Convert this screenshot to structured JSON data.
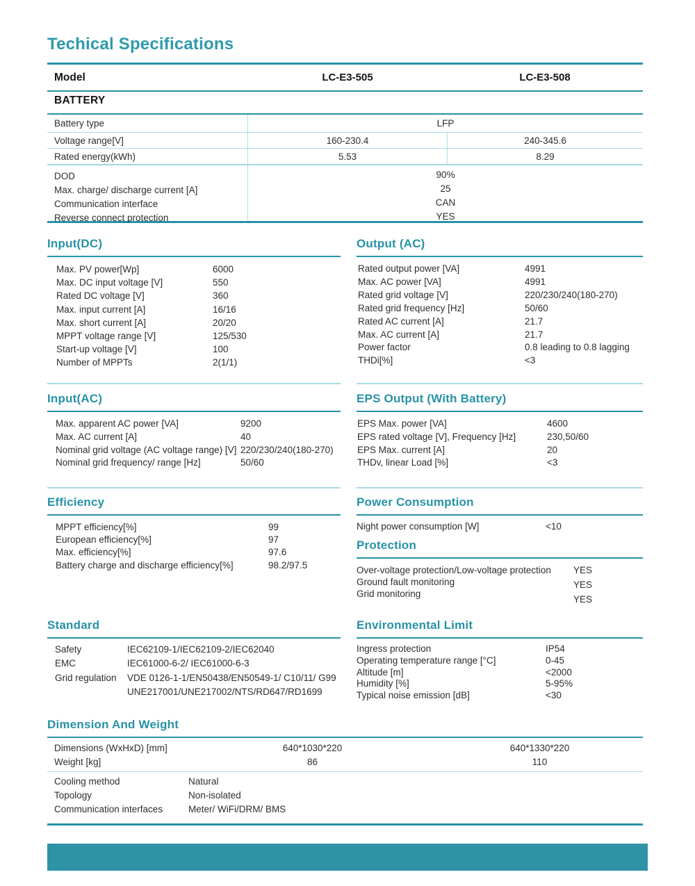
{
  "title": "Techical Specifications",
  "model": {
    "label": "Model",
    "col1": "LC-E3-505",
    "col2": "LC-E3-508"
  },
  "battery": {
    "header": "BATTERY",
    "type_label": "Battery type",
    "type_value": "LFP",
    "voltage": {
      "label": "Voltage range[V]",
      "v1": "160-230.4",
      "v2": "240-345.6"
    },
    "energy": {
      "label": "Rated energy(kWh)",
      "v1": "5.53",
      "v2": "8.29"
    },
    "common": [
      {
        "label": "DOD",
        "value": "90%"
      },
      {
        "label": "Max. charge/ discharge current [A]",
        "value": "25"
      },
      {
        "label": "Communication interface",
        "value": "CAN"
      },
      {
        "label": "Reverse connect protection",
        "value": "YES"
      }
    ]
  },
  "sections": {
    "input_dc": {
      "title": "Input(DC)",
      "rows": [
        [
          "Max. PV power[Wp]",
          "6000"
        ],
        [
          "Max. DC input voltage [V]",
          "550"
        ],
        [
          "Rated DC voltage [V]",
          "360"
        ],
        [
          "Max.  input  current [A]",
          "16/16"
        ],
        [
          "Max.  short  current [A]",
          "20/20"
        ],
        [
          "MPPT voltage range  [V]",
          "125/530"
        ],
        [
          "Start-up voltage [V]",
          "100"
        ],
        [
          "Number of MPPTs",
          "2(1/1)"
        ]
      ]
    },
    "output_ac": {
      "title": "Output (AC)",
      "rows": [
        [
          "Rated output power [VA]",
          "4991"
        ],
        [
          "Max. AC power [VA]",
          "4991"
        ],
        [
          "Rated grid voltage [V]",
          "220/230/240(180-270)"
        ],
        [
          "Rated grid frequency [Hz]",
          "50/60"
        ],
        [
          "Rated AC current [A]",
          "21.7"
        ],
        [
          "Max. AC current [A]",
          "21.7"
        ],
        [
          "Power factor",
          "0.8 leading to 0.8 lagging"
        ],
        [
          "THDi[%]",
          "<3"
        ]
      ]
    },
    "input_ac": {
      "title": "Input(AC)",
      "rows": [
        [
          "Max. apparent AC power [VA]",
          "9200"
        ],
        [
          "Max. AC current [A]",
          "40"
        ],
        [
          "Nominal grid voltage (AC voltage range) [V]",
          "220/230/240(180-270)"
        ],
        [
          "Nominal grid frequency/ range [Hz]",
          "50/60"
        ]
      ]
    },
    "eps": {
      "title": "EPS Output (With Battery)",
      "rows": [
        [
          "EPS Max. power [VA]",
          "4600"
        ],
        [
          "EPS rated voltage [V], Frequency [Hz]",
          "230,50/60"
        ],
        [
          "EPS Max. current [A]",
          "20"
        ],
        [
          "THDv, linear Load [%]",
          "<3"
        ]
      ]
    },
    "efficiency": {
      "title": "Efficiency",
      "rows": [
        [
          "MPPT efficiency[%]",
          "99"
        ],
        [
          "European efficiency[%]",
          "97"
        ],
        [
          "Max. efficiency[%]",
          "97.6"
        ],
        [
          "Battery charge and discharge efficiency[%]",
          "98.2/97.5"
        ]
      ]
    },
    "power": {
      "title": "Power Consumption",
      "rows": [
        [
          "Night power consumption [W]",
          "<10"
        ]
      ]
    },
    "protection": {
      "title": "Protection",
      "rows": [
        [
          "Over-voltage protection/Low-voltage protection",
          "YES"
        ],
        [
          "Ground fault monitoring",
          "YES"
        ],
        [
          "Grid  monitoring",
          "YES"
        ]
      ]
    },
    "standard": {
      "title": "Standard",
      "rows": [
        [
          "Safety",
          "IEC62109-1/IEC62109-2/IEC62040"
        ],
        [
          "EMC",
          "IEC61000-6-2/ IEC61000-6-3"
        ],
        [
          "Grid regulation",
          "VDE 0126-1-1/EN50438/EN50549-1/ C10/11/ G99"
        ],
        [
          "",
          "UNE217001/UNE217002/NTS/RD647/RD1699"
        ]
      ]
    },
    "environment": {
      "title": "Environmental Limit",
      "rows": [
        [
          "Ingress protection",
          "IP54"
        ],
        [
          "Operating temperature range [°C]",
          "0-45"
        ],
        [
          "Altitude [m]",
          "<2000"
        ],
        [
          "Humidity [%]",
          "5-95%"
        ],
        [
          "Typical noise emission [dB]",
          "<30"
        ]
      ]
    }
  },
  "dimension": {
    "title": "Dimension And Weight",
    "dims": {
      "label": "Dimensions (WxHxD) [mm]",
      "v1": "640*1030*220",
      "v2": "640*1330*220"
    },
    "weight": {
      "label": "Weight [kg]",
      "v1": "86",
      "v2": "110"
    },
    "rows1": [
      {
        "label": "Cooling method",
        "value": "Natural"
      },
      {
        "label": "Topology",
        "value": "Non-isolated"
      },
      {
        "label": "Communication interfaces",
        "value": "Meter/ WiFi/DRM/ BMS"
      }
    ]
  },
  "colors": {
    "accent_teal": "#2792a7",
    "light_line": "#a9dbe6",
    "footer": "#2e93a6"
  }
}
